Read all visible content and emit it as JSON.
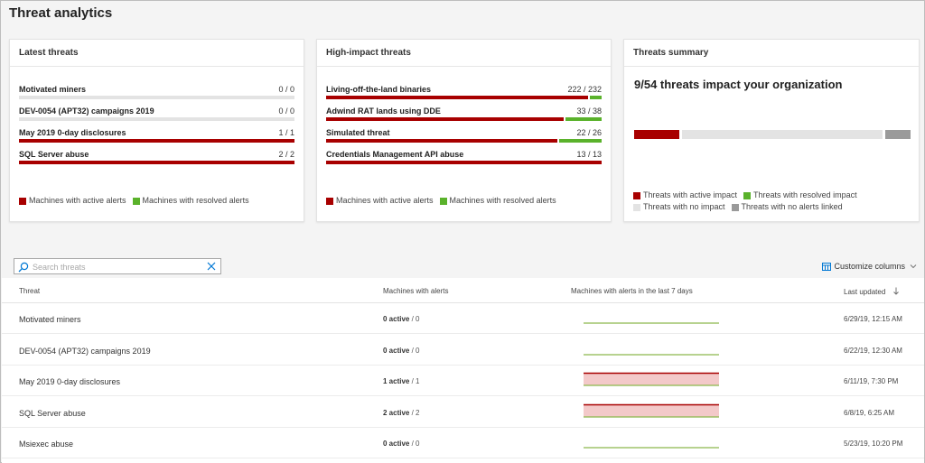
{
  "page": {
    "title": "Threat analytics"
  },
  "colors": {
    "active": "#a80000",
    "resolved": "#5ab22b",
    "no_impact": "#e3e3e3",
    "no_alerts": "#9a9a9a"
  },
  "latest_threats": {
    "title": "Latest threats",
    "rows": [
      {
        "name": "Motivated miners",
        "ratio": "0 / 0",
        "active": 0,
        "resolved": 0,
        "total": 0
      },
      {
        "name": "DEV-0054 (APT32) campaigns 2019",
        "ratio": "0 / 0",
        "active": 0,
        "resolved": 0,
        "total": 0
      },
      {
        "name": "May 2019 0-day disclosures",
        "ratio": "1 / 1",
        "active": 1,
        "resolved": 0,
        "total": 1
      },
      {
        "name": "SQL Server abuse",
        "ratio": "2 / 2",
        "active": 2,
        "resolved": 0,
        "total": 2
      }
    ],
    "legend": {
      "active": "Machines with active alerts",
      "resolved": "Machines with resolved alerts"
    }
  },
  "high_impact_threats": {
    "title": "High-impact threats",
    "rows": [
      {
        "name": "Living-off-the-land binaries",
        "ratio": "222 / 232",
        "active": 222,
        "resolved": 10,
        "total": 232
      },
      {
        "name": "Adwind RAT lands using DDE",
        "ratio": "33 / 38",
        "active": 33,
        "resolved": 5,
        "total": 38
      },
      {
        "name": "Simulated threat",
        "ratio": "22 / 26",
        "active": 22,
        "resolved": 4,
        "total": 26
      },
      {
        "name": "Credentials Management API abuse",
        "ratio": "13 / 13",
        "active": 13,
        "resolved": 0,
        "total": 13
      }
    ],
    "legend": {
      "active": "Machines with active alerts",
      "resolved": "Machines with resolved alerts"
    }
  },
  "threats_summary": {
    "title": "Threats summary",
    "headline": "9/54 threats impact your organization",
    "counts": {
      "active": 9,
      "resolved": 0,
      "no_impact": 40,
      "no_alerts": 5
    },
    "legend": {
      "active": "Threats with active impact",
      "resolved": "Threats with resolved impact",
      "no_impact": "Threats with no impact",
      "no_alerts": "Threats with no alerts linked"
    }
  },
  "search": {
    "placeholder": "Search threats"
  },
  "customize": {
    "label": "Customize columns"
  },
  "table": {
    "headers": {
      "threat": "Threat",
      "machines": "Machines with alerts",
      "trend": "Machines with alerts in the last 7 days",
      "updated": "Last updated"
    },
    "rows": [
      {
        "name": "Motivated miners",
        "active_label": "0 active",
        "total_label": " / 0",
        "trend": "resolved",
        "date": "6/29/19, 12:15 AM"
      },
      {
        "name": "DEV-0054 (APT32) campaigns 2019",
        "active_label": "0 active",
        "total_label": " / 0",
        "trend": "resolved",
        "date": "6/22/19, 12:30 AM"
      },
      {
        "name": "May 2019 0-day disclosures",
        "active_label": "1 active",
        "total_label": " / 1",
        "trend": "active",
        "date": "6/11/19, 7:30 PM"
      },
      {
        "name": "SQL Server abuse",
        "active_label": "2 active",
        "total_label": " / 2",
        "trend": "active",
        "date": "6/8/19, 6:25 AM"
      },
      {
        "name": "Msiexec abuse",
        "active_label": "0 active",
        "total_label": " / 0",
        "trend": "resolved",
        "date": "5/23/19, 10:20 PM"
      }
    ]
  }
}
